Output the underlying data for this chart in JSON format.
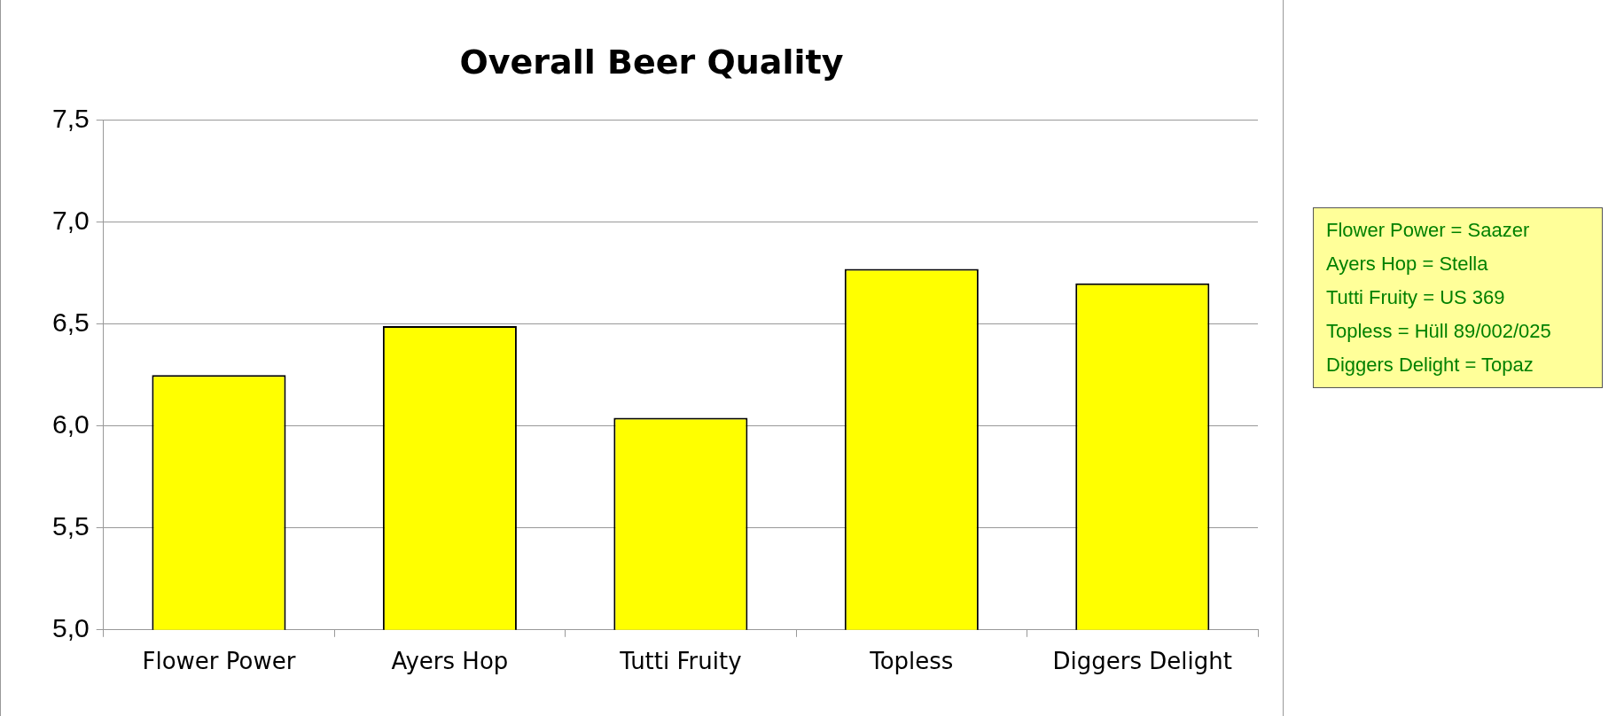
{
  "chart_data": {
    "type": "bar",
    "title": "Overall Beer Quality",
    "categories": [
      "Flower Power",
      "Ayers Hop",
      "Tutti Fruity",
      "Topless",
      "Diggers Delight"
    ],
    "values": [
      6.25,
      6.49,
      6.04,
      6.77,
      6.7
    ],
    "color": "#ffff00",
    "ylim": [
      5,
      7.5
    ],
    "yticks": [
      {
        "value": 5,
        "label": "5,0"
      },
      {
        "value": 5.5,
        "label": "5,5"
      },
      {
        "value": 6,
        "label": "6,0"
      },
      {
        "value": 6.5,
        "label": "6,5"
      },
      {
        "value": 7,
        "label": "7,0"
      },
      {
        "value": 7.5,
        "label": "7,5"
      }
    ],
    "grid": "y",
    "annotations": [
      "Flower Power = Saazer",
      "Ayers Hop = Stella",
      "Tutti Fruity = US 369",
      "Topless = Hüll 89/002/025",
      "Diggers Delight = Topaz"
    ]
  }
}
